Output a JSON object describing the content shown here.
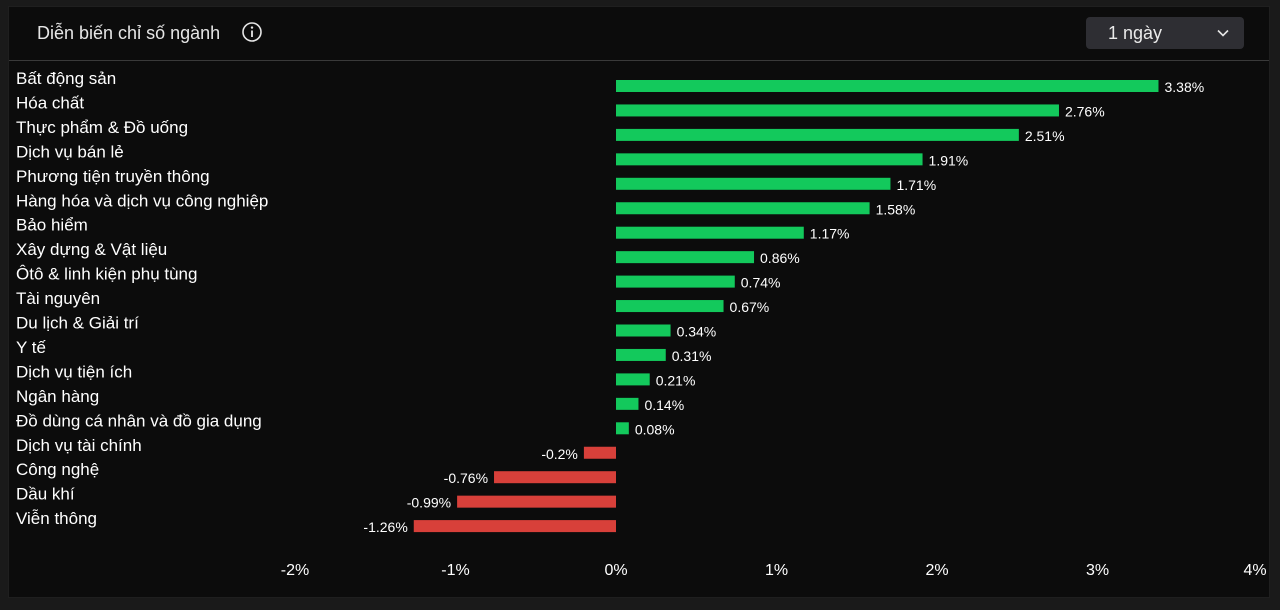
{
  "header": {
    "title": "Diễn biến chỉ số ngành",
    "period_label": "1 ngày"
  },
  "colors": {
    "positive": "#13c95c",
    "negative": "#d8403a"
  },
  "chart_data": {
    "type": "bar",
    "orientation": "horizontal",
    "title": "Diễn biến chỉ số ngành",
    "categories": [
      "Bất động sản",
      "Hóa chất",
      "Thực phẩm & Đồ uống",
      "Dịch vụ bán lẻ",
      "Phương tiện truyền thông",
      "Hàng hóa và dịch vụ công nghiệp",
      "Bảo hiểm",
      "Xây dựng & Vật liệu",
      "Ôtô & linh kiện phụ tùng",
      "Tài nguyên",
      "Du lịch & Giải trí",
      "Y tế",
      "Dịch vụ tiện ích",
      "Ngân hàng",
      "Đồ dùng cá nhân và đồ gia dụng",
      "Dịch vụ tài chính",
      "Công nghệ",
      "Dầu khí",
      "Viễn thông"
    ],
    "values": [
      3.38,
      2.76,
      2.51,
      1.91,
      1.71,
      1.58,
      1.17,
      0.86,
      0.74,
      0.67,
      0.34,
      0.31,
      0.21,
      0.14,
      0.08,
      -0.2,
      -0.76,
      -0.99,
      -1.26
    ],
    "value_labels": [
      "3.38%",
      "2.76%",
      "2.51%",
      "1.91%",
      "1.71%",
      "1.58%",
      "1.17%",
      "0.86%",
      "0.74%",
      "0.67%",
      "0.34%",
      "0.31%",
      "0.21%",
      "0.14%",
      "0.08%",
      "-0.2%",
      "-0.76%",
      "-0.99%",
      "-1.26%"
    ],
    "xlim": [
      -2,
      4
    ],
    "xticks": [
      -2,
      -1,
      0,
      1,
      2,
      3,
      4
    ],
    "xtick_labels": [
      "-2%",
      "-1%",
      "0%",
      "1%",
      "2%",
      "3%",
      "4%"
    ],
    "xlabel": "",
    "ylabel": "",
    "grid": false
  }
}
